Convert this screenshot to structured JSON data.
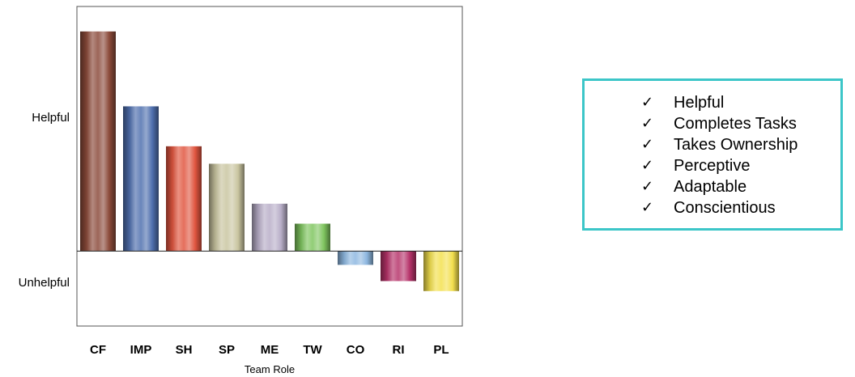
{
  "chart_data": {
    "type": "bar",
    "title": "",
    "xlabel": "Team Role",
    "ylabel": "",
    "y_tick_labels": [
      {
        "label": "Helpful",
        "value": 5.3
      },
      {
        "label": "Unhelpful",
        "value": -1.3
      }
    ],
    "ylim": [
      -3.0,
      9.8
    ],
    "categories": [
      "CF",
      "IMP",
      "SH",
      "SP",
      "ME",
      "TW",
      "CO",
      "RI",
      "PL"
    ],
    "values": [
      8.8,
      5.8,
      4.2,
      3.5,
      1.9,
      1.1,
      -0.55,
      -1.2,
      -1.6
    ],
    "colors": {
      "CF": "#8b4a3a",
      "IMP": "#4f6fae",
      "SH": "#e0553f",
      "SP": "#c9c5a0",
      "ME": "#b8aec8",
      "TW": "#7fc55f",
      "CO": "#8db7e0",
      "RI": "#b6336a",
      "PL": "#f3e04e"
    },
    "grid": false,
    "legend": "none"
  },
  "panel": {
    "items": [
      "Helpful",
      "Completes Tasks",
      "Takes Ownership",
      "Perceptive",
      "Adaptable",
      "Conscientious"
    ],
    "check_glyph": "✓",
    "border_color": "#3cc6c8"
  }
}
